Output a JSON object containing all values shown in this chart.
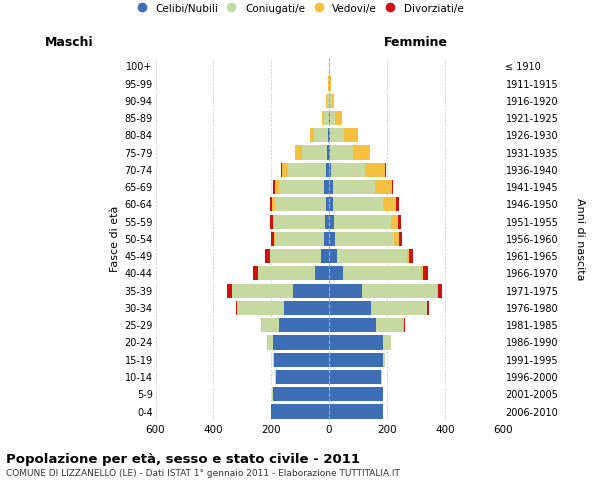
{
  "age_groups": [
    "0-4",
    "5-9",
    "10-14",
    "15-19",
    "20-24",
    "25-29",
    "30-34",
    "35-39",
    "40-44",
    "45-49",
    "50-54",
    "55-59",
    "60-64",
    "65-69",
    "70-74",
    "75-79",
    "80-84",
    "85-89",
    "90-94",
    "95-99",
    "100+"
  ],
  "birth_years": [
    "2006-2010",
    "2001-2005",
    "1996-2000",
    "1991-1995",
    "1986-1990",
    "1981-1985",
    "1976-1980",
    "1971-1975",
    "1966-1970",
    "1961-1965",
    "1956-1960",
    "1951-1955",
    "1946-1950",
    "1941-1945",
    "1936-1940",
    "1931-1935",
    "1926-1930",
    "1921-1925",
    "1916-1920",
    "1911-1915",
    "≤ 1910"
  ],
  "males": {
    "celibi": [
      200,
      195,
      185,
      190,
      195,
      175,
      155,
      125,
      50,
      28,
      18,
      15,
      12,
      18,
      12,
      6,
      3,
      2,
      1,
      0,
      0
    ],
    "coniugati": [
      0,
      1,
      2,
      5,
      18,
      58,
      162,
      210,
      195,
      175,
      170,
      175,
      175,
      155,
      130,
      88,
      48,
      14,
      5,
      2,
      0
    ],
    "vedovi": [
      0,
      0,
      0,
      0,
      2,
      2,
      1,
      2,
      2,
      2,
      3,
      5,
      10,
      15,
      20,
      25,
      15,
      10,
      5,
      2,
      0
    ],
    "divorziati": [
      0,
      0,
      0,
      0,
      1,
      2,
      5,
      15,
      15,
      15,
      10,
      10,
      8,
      5,
      5,
      0,
      0,
      0,
      0,
      0,
      0
    ]
  },
  "females": {
    "nubili": [
      185,
      185,
      180,
      185,
      185,
      162,
      145,
      112,
      48,
      28,
      20,
      18,
      12,
      12,
      8,
      4,
      2,
      2,
      1,
      0,
      0
    ],
    "coniugate": [
      0,
      1,
      2,
      8,
      28,
      95,
      192,
      260,
      270,
      240,
      205,
      195,
      175,
      145,
      115,
      78,
      48,
      18,
      8,
      3,
      0
    ],
    "vedove": [
      0,
      0,
      0,
      0,
      1,
      2,
      2,
      3,
      5,
      8,
      15,
      25,
      45,
      60,
      70,
      60,
      50,
      25,
      8,
      3,
      0
    ],
    "divorziate": [
      0,
      0,
      0,
      0,
      1,
      2,
      5,
      15,
      20,
      15,
      12,
      10,
      8,
      5,
      5,
      1,
      0,
      0,
      0,
      0,
      0
    ]
  },
  "colors": {
    "celibi": "#3d6eb5",
    "coniugati": "#c5d9a0",
    "vedovi": "#f5c040",
    "divorziati": "#cc1111"
  },
  "xlim": 600,
  "title": "Popolazione per età, sesso e stato civile - 2011",
  "subtitle": "COMUNE DI LIZZANELLO (LE) - Dati ISTAT 1° gennaio 2011 - Elaborazione TUTTITALIA.IT",
  "ylabel_left": "Fasce di età",
  "ylabel_right": "Anni di nascita",
  "xlabel_maschi": "Maschi",
  "xlabel_femmine": "Femmine",
  "legend_labels": [
    "Celibi/Nubili",
    "Coniugati/e",
    "Vedovi/e",
    "Divorziati/e"
  ],
  "bg_color": "#ffffff",
  "grid_color": "#c8c8c8"
}
